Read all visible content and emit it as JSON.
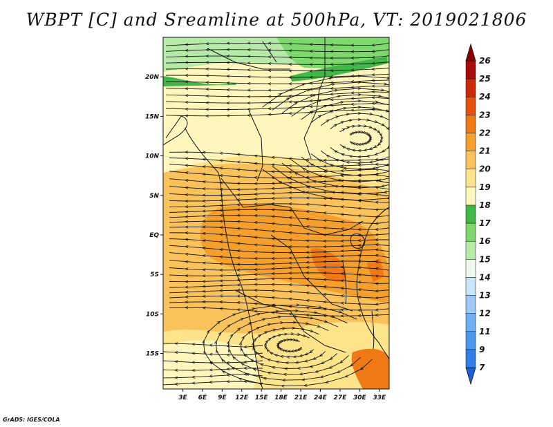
{
  "title": "WBPT [C] and Sreamline at 500hPa, VT: 2019021806",
  "footer": "GrADS: IGES/COLA",
  "map": {
    "lat_ticks": [
      "20N",
      "15N",
      "10N",
      "5N",
      "EQ",
      "5S",
      "10S",
      "15S"
    ],
    "lat_values": [
      20,
      15,
      10,
      5,
      0,
      -5,
      -10,
      -15
    ],
    "lon_ticks": [
      "3E",
      "6E",
      "9E",
      "12E",
      "15E",
      "18E",
      "21E",
      "24E",
      "27E",
      "30E",
      "33E"
    ],
    "lon_values": [
      3,
      6,
      9,
      12,
      15,
      18,
      21,
      24,
      27,
      30,
      33
    ],
    "lon_range": [
      0,
      34.5
    ],
    "lat_range": [
      -19.5,
      25
    ]
  },
  "colorbar": {
    "levels": [
      "7",
      "9",
      "11",
      "12",
      "13",
      "14",
      "15",
      "16",
      "17",
      "18",
      "19",
      "20",
      "21",
      "22",
      "23",
      "24",
      "25",
      "26"
    ],
    "colors": [
      "#1a5fd8",
      "#2f7fe6",
      "#4b97ee",
      "#6fb0f3",
      "#9ccaf7",
      "#c8e4fb",
      "#eefaee",
      "#b6eaa8",
      "#7fd86e",
      "#3fb845",
      "#fff6be",
      "#fde38a",
      "#f9c25a",
      "#f5a02d",
      "#ef7a15",
      "#e4520c",
      "#cc2a0a",
      "#a80c0c",
      "#8a0000"
    ]
  },
  "legend_colors": {
    "green": "#3fb845",
    "light_green": "#7fd86e",
    "yellow": "#fde38a",
    "orange": "#f5a02d",
    "dark_orange": "#ef7a15",
    "red": "#e4520c"
  }
}
